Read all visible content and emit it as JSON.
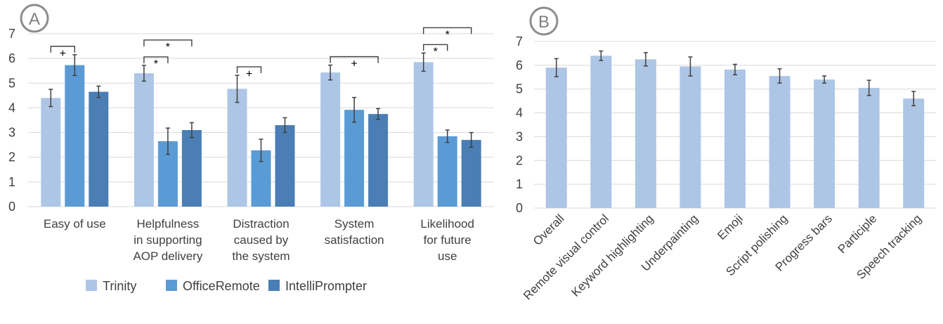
{
  "colors": {
    "trinity": "#adc6e6",
    "officeremote": "#5b9bd5",
    "intelliprompter": "#4a7eb5",
    "grid": "#d9d9d9",
    "err": "#404040",
    "panel_ring": "#8c8c8c"
  },
  "chart_data": [
    {
      "panel": "A",
      "type": "bar",
      "ylim": [
        0,
        7
      ],
      "yticks": [
        "0",
        "1",
        "2",
        "3",
        "4",
        "5",
        "6",
        "7"
      ],
      "categories": [
        [
          "Easy of use"
        ],
        [
          "Helpfulness",
          "in supporting",
          "AOP delivery"
        ],
        [
          "Distraction",
          "caused by",
          "the system"
        ],
        [
          "System",
          "satisfaction"
        ],
        [
          "Likelihood",
          "for future",
          "use"
        ]
      ],
      "series": [
        {
          "name": "Trinity",
          "color": "#adc6e6",
          "values": [
            4.4,
            5.4,
            4.77,
            5.43,
            5.85
          ],
          "err": [
            0.35,
            0.32,
            0.55,
            0.3,
            0.37
          ]
        },
        {
          "name": "OfficeRemote",
          "color": "#5b9bd5",
          "values": [
            5.73,
            2.65,
            2.28,
            3.92,
            2.85
          ],
          "err": [
            0.42,
            0.53,
            0.45,
            0.5,
            0.25
          ]
        },
        {
          "name": "IntelliPrompter",
          "color": "#4a7eb5",
          "values": [
            4.65,
            3.1,
            3.3,
            3.75,
            2.7
          ],
          "err": [
            0.23,
            0.3,
            0.3,
            0.22,
            0.3
          ]
        }
      ],
      "significance": [
        {
          "category": 0,
          "from": 0,
          "to": 1,
          "mark": "+"
        },
        {
          "category": 1,
          "from": 0,
          "to": 1,
          "mark": "*"
        },
        {
          "category": 1,
          "from": 0,
          "to": 2,
          "mark": "*"
        },
        {
          "category": 2,
          "from": 0,
          "to": 1,
          "mark": "+"
        },
        {
          "category": 3,
          "from": 0,
          "to": 2,
          "mark": "+"
        },
        {
          "category": 4,
          "from": 0,
          "to": 1,
          "mark": "*"
        },
        {
          "category": 4,
          "from": 0,
          "to": 2,
          "mark": "*"
        }
      ],
      "legend": {
        "position": "bottom",
        "entries": [
          "Trinity",
          "OfficeRemote",
          "IntelliPrompter"
        ]
      },
      "grid": true
    },
    {
      "panel": "B",
      "type": "bar",
      "ylim": [
        0,
        7
      ],
      "yticks": [
        "0",
        "1",
        "2",
        "3",
        "4",
        "5",
        "6",
        "7"
      ],
      "categories": [
        "Overall",
        "Remote visual control",
        "Keyword highlighting",
        "Underpainting",
        "Emoji",
        "Script polishing",
        "Progress bars",
        "Participle",
        "Speech tracking"
      ],
      "series": [
        {
          "color": "#adc6e6",
          "values": [
            5.9,
            6.4,
            6.25,
            5.95,
            5.82,
            5.55,
            5.4,
            5.05,
            4.6
          ],
          "err": [
            0.38,
            0.2,
            0.28,
            0.4,
            0.22,
            0.3,
            0.15,
            0.32,
            0.3
          ]
        }
      ],
      "grid": true
    }
  ]
}
